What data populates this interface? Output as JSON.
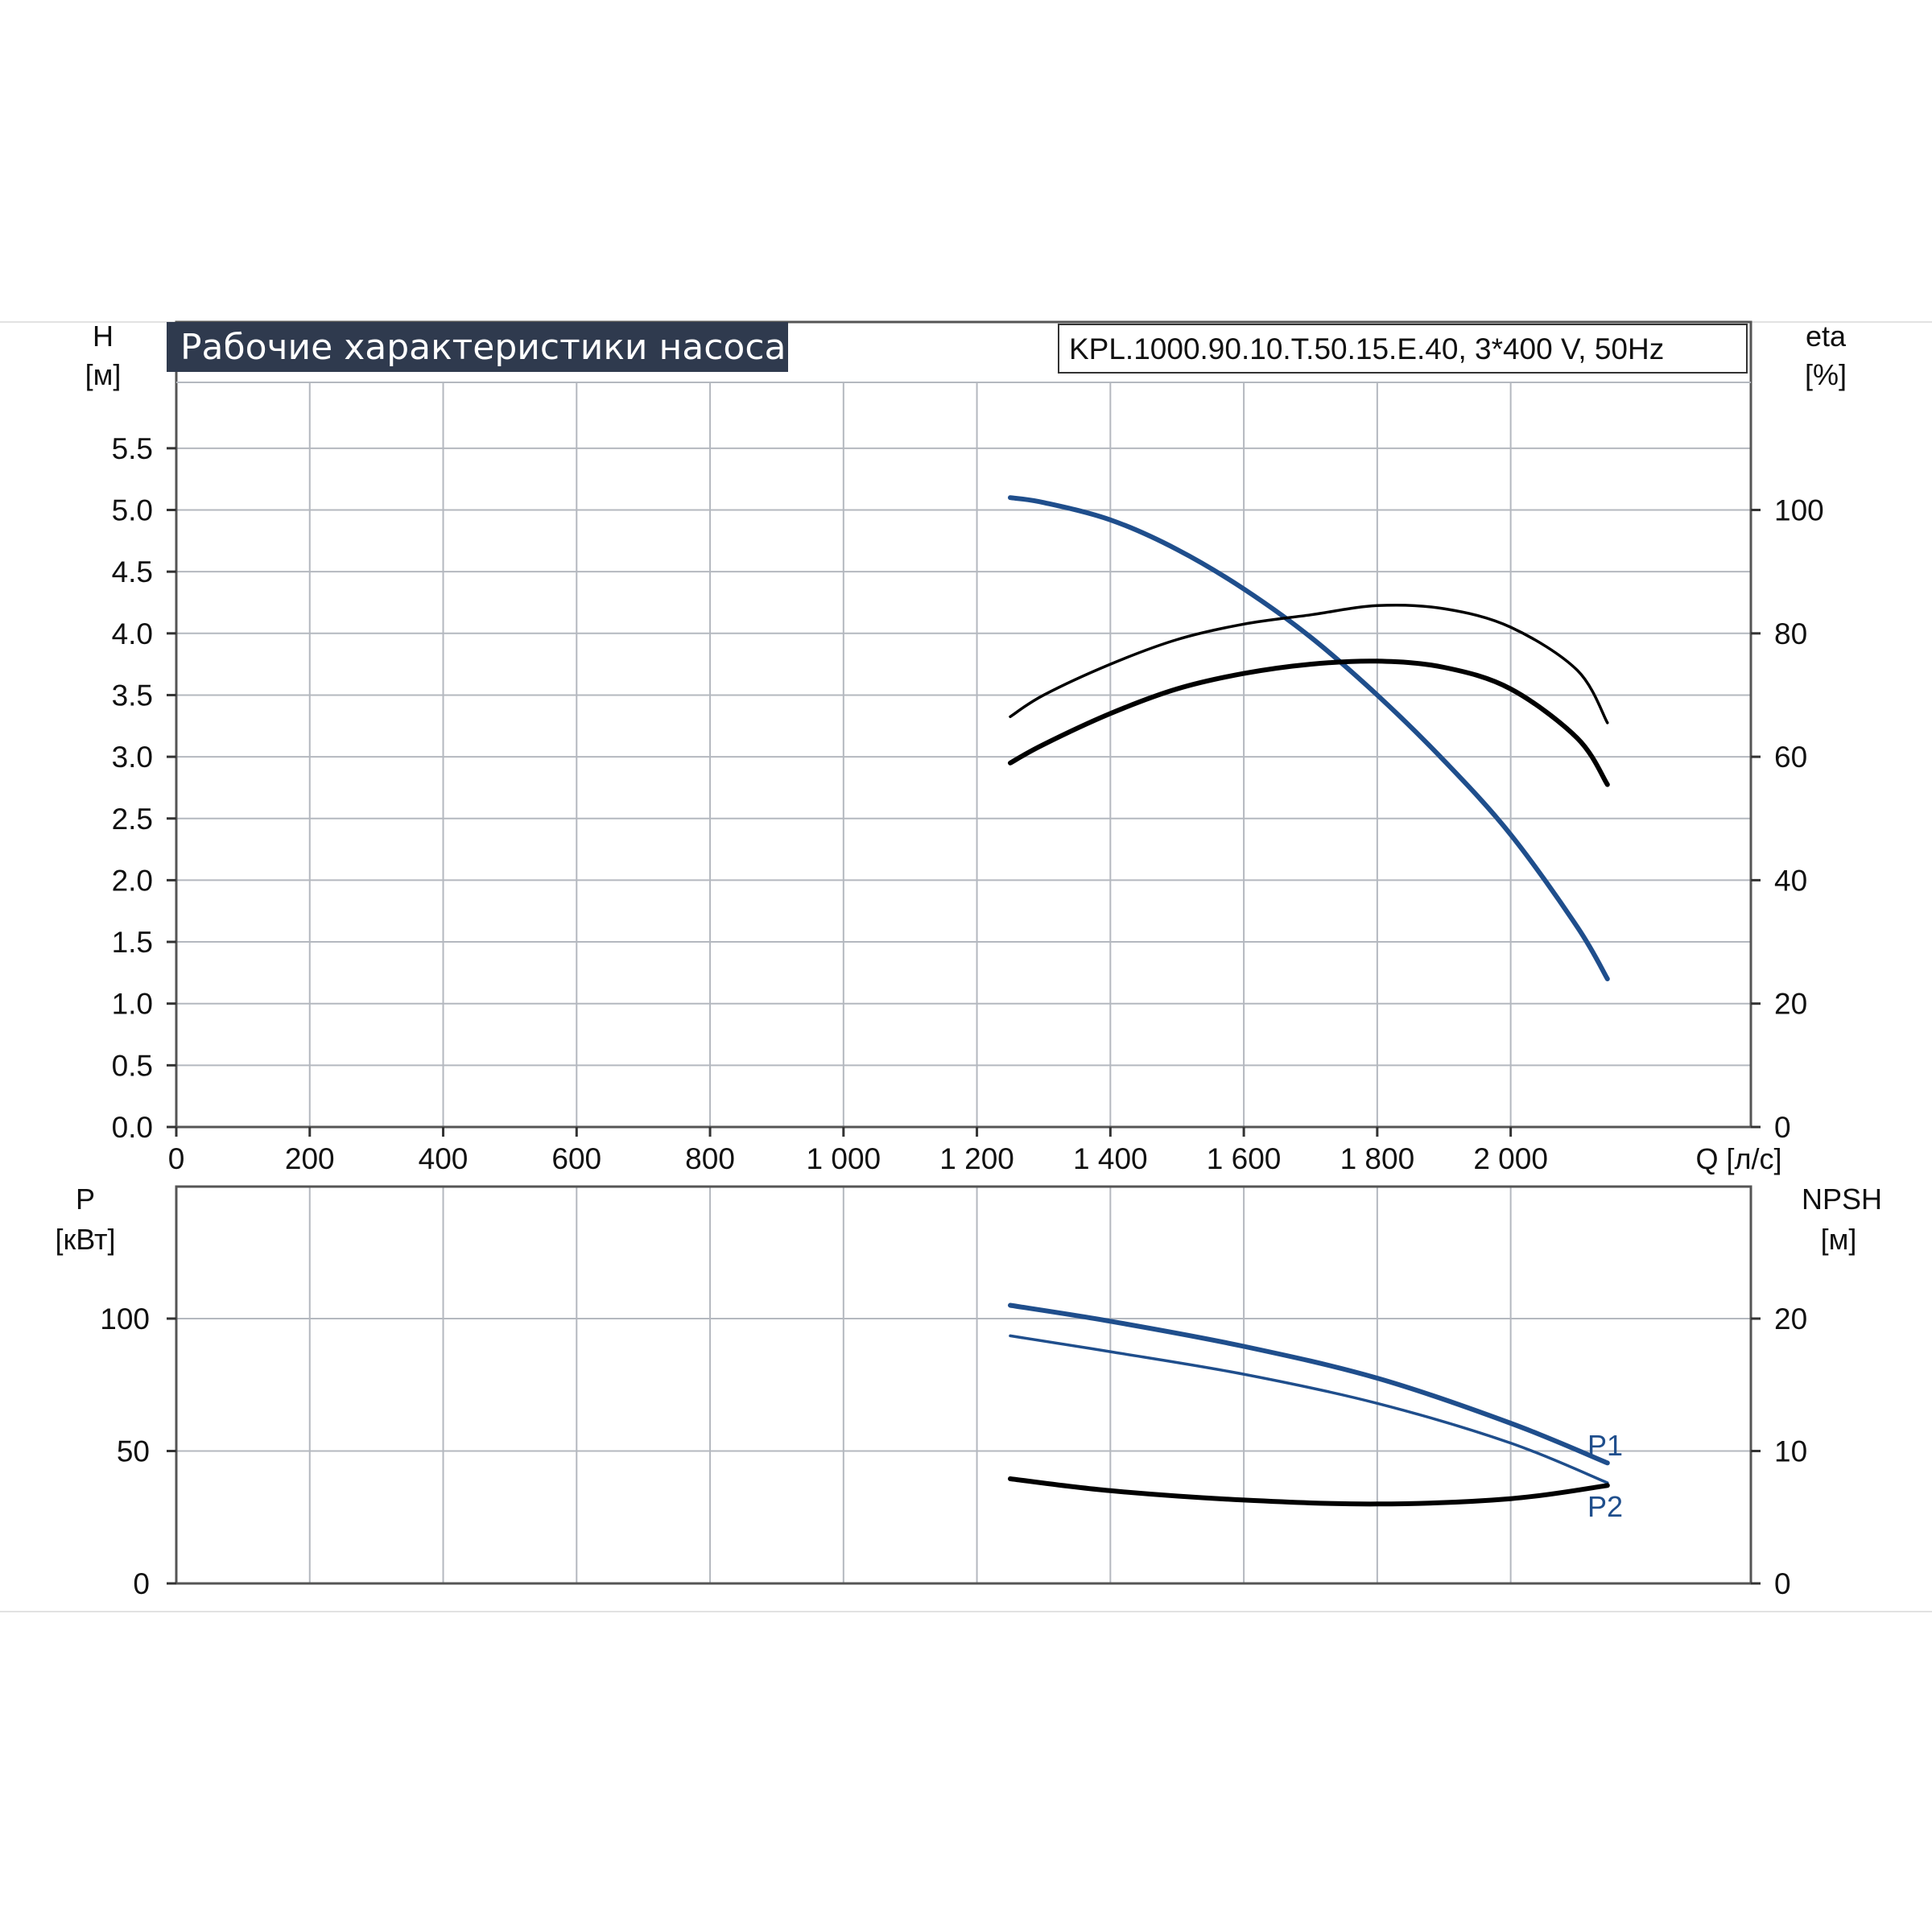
{
  "chart_data": [
    {
      "type": "line",
      "title": "Рабочие характеристики насоса",
      "model": "KPL.1000.90.10.T.50.15.E.40, 3*400 V, 50Hz",
      "xlabel": "Q [л/с]",
      "x_unit_label": "Q [л/с]",
      "xlim": [
        0,
        2360
      ],
      "x_ticks": [
        0,
        200,
        400,
        600,
        800,
        1000,
        1200,
        1400,
        1600,
        1800,
        2000
      ],
      "x_tick_labels": [
        "0",
        "200",
        "400",
        "600",
        "800",
        "1 000",
        "1 200",
        "1 400",
        "1 600",
        "1 800",
        "2 000"
      ],
      "ylabel": "H",
      "ylabel_unit": "[м]",
      "ylim": [
        0,
        6
      ],
      "y_ticks": [
        0.0,
        0.5,
        1.0,
        1.5,
        2.0,
        2.5,
        3.0,
        3.5,
        4.0,
        4.5,
        5.0,
        5.5
      ],
      "y_tick_labels": [
        "0.0",
        "0.5",
        "1.0",
        "1.5",
        "2.0",
        "2.5",
        "3.0",
        "3.5",
        "4.0",
        "4.5",
        "5.0",
        "5.5"
      ],
      "y2label": "eta",
      "y2label_unit": "[%]",
      "y2_ticks": [
        0,
        20,
        40,
        60,
        80,
        100
      ],
      "y2_tick_labels": [
        "0",
        "20",
        "40",
        "60",
        "80",
        "100"
      ],
      "grid": true,
      "series": [
        {
          "axis": "left",
          "color": "#1f4e8c",
          "weight": "thick",
          "x": [
            1250,
            1300,
            1400,
            1500,
            1600,
            1700,
            1800,
            1900,
            2000,
            2100,
            2145
          ],
          "values": [
            5.1,
            5.06,
            4.92,
            4.68,
            4.36,
            3.97,
            3.5,
            2.97,
            2.37,
            1.62,
            1.2
          ]
        },
        {
          "axis": "right",
          "color": "#000000",
          "weight": "thin",
          "x": [
            1250,
            1300,
            1400,
            1500,
            1600,
            1700,
            1800,
            1900,
            2000,
            2100,
            2145
          ],
          "values": [
            66.5,
            70,
            75,
            79,
            81.5,
            83,
            84.5,
            84,
            81,
            74,
            65.5
          ]
        },
        {
          "axis": "right",
          "color": "#000000",
          "weight": "thick",
          "x": [
            1250,
            1300,
            1400,
            1500,
            1600,
            1700,
            1800,
            1900,
            2000,
            2100,
            2145
          ],
          "values": [
            59,
            62,
            67,
            71,
            73.5,
            75,
            75.5,
            74.5,
            71,
            63,
            55.5
          ]
        }
      ]
    },
    {
      "type": "line",
      "xlim": [
        0,
        2360
      ],
      "ylabel": "P",
      "ylabel_unit": "[кВт]",
      "ylim": [
        0,
        145
      ],
      "y_ticks": [
        0,
        50,
        100
      ],
      "y_tick_labels": [
        "0",
        "50",
        "100"
      ],
      "y2label": "NPSH",
      "y2label_unit": "[м]",
      "y2_ticks": [
        0,
        10,
        20
      ],
      "y2_tick_labels": [
        "0",
        "10",
        "20"
      ],
      "grid": true,
      "series": [
        {
          "name": "P1",
          "axis": "left",
          "color": "#1f4e8c",
          "weight": "thick",
          "x": [
            1250,
            1400,
            1600,
            1800,
            2000,
            2145
          ],
          "values": [
            105,
            99,
            89.5,
            77.5,
            60.5,
            45.5
          ]
        },
        {
          "name": "P2",
          "axis": "left",
          "color": "#1f4e8c",
          "weight": "thin",
          "x": [
            1250,
            1400,
            1600,
            1800,
            2000,
            2145
          ],
          "values": [
            93.5,
            87.5,
            79,
            68,
            53,
            38
          ]
        },
        {
          "axis": "right",
          "color": "#000000",
          "weight": "thick",
          "x": [
            1250,
            1400,
            1600,
            1800,
            2000,
            2145
          ],
          "values": [
            7.9,
            7.0,
            6.3,
            6.0,
            6.4,
            7.4
          ]
        }
      ]
    }
  ]
}
